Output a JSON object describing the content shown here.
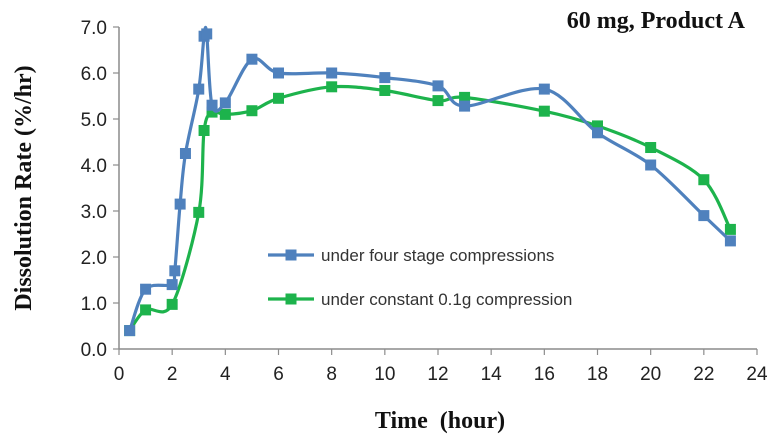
{
  "chart_data": {
    "type": "line",
    "title": "60 mg, Product A",
    "xlabel": "Time  (hour)",
    "ylabel": "Dissolution Rate (%/hr)",
    "xlim": [
      0,
      24
    ],
    "ylim": [
      0,
      7
    ],
    "x_ticks": [
      0,
      2,
      4,
      6,
      8,
      10,
      12,
      14,
      16,
      18,
      20,
      22,
      24
    ],
    "y_ticks": [
      0,
      1,
      2,
      3,
      4,
      5,
      6,
      7
    ],
    "y_tick_labels": [
      "0.0",
      "1.0",
      "2.0",
      "3.0",
      "4.0",
      "5.0",
      "6.0",
      "7.0"
    ],
    "grid": false,
    "legend_position": "center",
    "series": [
      {
        "name": "under four stage compressions",
        "color": "#4f81bd",
        "x": [
          0.4,
          1,
          2,
          2.1,
          2.3,
          2.5,
          3,
          3.2,
          3.3,
          3.5,
          4,
          5,
          6,
          8,
          10,
          12,
          13,
          16,
          18,
          20,
          22,
          23
        ],
        "y": [
          0.4,
          1.3,
          1.4,
          1.7,
          3.15,
          4.25,
          5.65,
          6.8,
          6.85,
          5.3,
          5.35,
          6.3,
          6.0,
          6.0,
          5.9,
          5.72,
          5.28,
          5.65,
          4.7,
          4.0,
          2.9,
          2.35
        ]
      },
      {
        "name": "under constant 0.1g compression",
        "color": "#1db34c",
        "x": [
          0.4,
          1,
          2,
          3,
          3.2,
          3.5,
          4,
          5,
          6,
          8,
          10,
          12,
          13,
          16,
          18,
          20,
          22,
          23
        ],
        "y": [
          0.4,
          0.85,
          0.97,
          2.97,
          4.75,
          5.15,
          5.1,
          5.18,
          5.45,
          5.7,
          5.62,
          5.4,
          5.47,
          5.17,
          4.85,
          4.38,
          3.68,
          2.6
        ]
      }
    ]
  }
}
